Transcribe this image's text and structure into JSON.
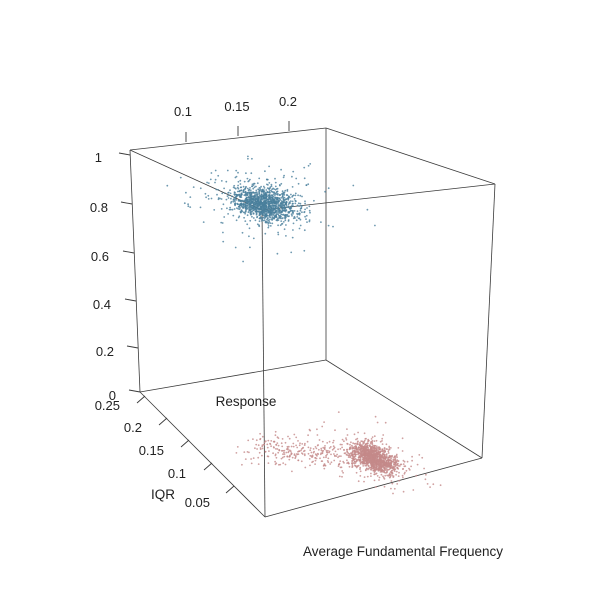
{
  "chart_data": {
    "type": "scatter",
    "plot_style": "3d-scatterplot",
    "axes": {
      "x": {
        "label": "Average Fundamental Frequency",
        "ticks": [
          "0.1",
          "0.15",
          "0.2"
        ],
        "tick_values": [
          0.1,
          0.15,
          0.2
        ],
        "range": [
          0.05,
          0.25
        ]
      },
      "y": {
        "label": "IQR",
        "ticks": [
          "0.25",
          "0.2",
          "0.15",
          "0.1",
          "0.05"
        ],
        "tick_values": [
          0.25,
          0.2,
          0.15,
          0.1,
          0.05
        ],
        "range": [
          0.0,
          0.27
        ]
      },
      "z": {
        "label": "Response",
        "ticks": [
          "1",
          "0.8",
          "0.6",
          "0.4",
          "0.2",
          "0"
        ],
        "tick_values": [
          1,
          0.8,
          0.6,
          0.4,
          0.2,
          0
        ],
        "range": [
          0,
          1
        ]
      }
    },
    "series": [
      {
        "response": 1,
        "color": "#4a7f9c",
        "points": 1400,
        "cluster": {
          "x_mean": 0.155,
          "x_sd": 0.013,
          "y_mean": 0.17,
          "y_sd": 0.02
        }
      },
      {
        "response": 0,
        "color": "#c48a8a",
        "points": 1600,
        "cluster": {
          "x_mean": 0.195,
          "x_sd": 0.012,
          "y_mean": 0.062,
          "y_sd": 0.012,
          "tail_x_mean": 0.155,
          "tail_y_mean": 0.2
        }
      }
    ],
    "grid": false,
    "legend": "none"
  }
}
